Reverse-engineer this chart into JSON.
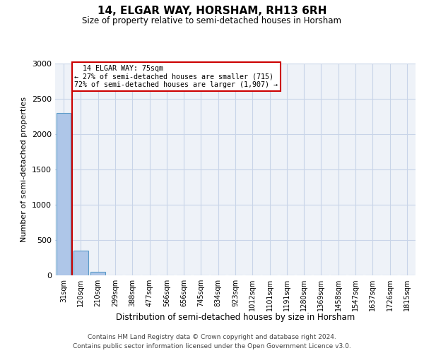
{
  "title": "14, ELGAR WAY, HORSHAM, RH13 6RH",
  "subtitle": "Size of property relative to semi-detached houses in Horsham",
  "xlabel": "Distribution of semi-detached houses by size in Horsham",
  "ylabel": "Number of semi-detached properties",
  "footer_line1": "Contains HM Land Registry data © Crown copyright and database right 2024.",
  "footer_line2": "Contains public sector information licensed under the Open Government Licence v3.0.",
  "categories": [
    "31sqm",
    "120sqm",
    "210sqm",
    "299sqm",
    "388sqm",
    "477sqm",
    "566sqm",
    "656sqm",
    "745sqm",
    "834sqm",
    "923sqm",
    "1012sqm",
    "1101sqm",
    "1191sqm",
    "1280sqm",
    "1369sqm",
    "1458sqm",
    "1547sqm",
    "1637sqm",
    "1726sqm",
    "1815sqm"
  ],
  "values": [
    2300,
    350,
    50,
    0,
    0,
    0,
    0,
    0,
    0,
    0,
    0,
    0,
    0,
    0,
    0,
    0,
    0,
    0,
    0,
    0,
    0
  ],
  "bar_color": "#aec6e8",
  "bar_edge_color": "#5a9ac8",
  "grid_color": "#c8d4e8",
  "background_color": "#eef2f8",
  "property_label": "14 ELGAR WAY: 75sqm",
  "pct_smaller": 27,
  "count_smaller": 715,
  "pct_larger": 72,
  "count_larger": 1907,
  "red_line_color": "#cc0000",
  "annotation_box_color": "#cc0000",
  "ylim": [
    0,
    3000
  ],
  "yticks": [
    0,
    500,
    1000,
    1500,
    2000,
    2500,
    3000
  ]
}
